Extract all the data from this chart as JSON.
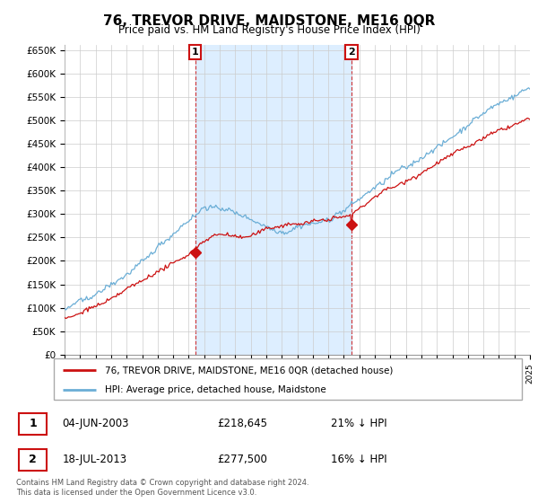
{
  "title": "76, TREVOR DRIVE, MAIDSTONE, ME16 0QR",
  "subtitle": "Price paid vs. HM Land Registry's House Price Index (HPI)",
  "ylim": [
    0,
    660000
  ],
  "yticks": [
    0,
    50000,
    100000,
    150000,
    200000,
    250000,
    300000,
    350000,
    400000,
    450000,
    500000,
    550000,
    600000,
    650000
  ],
  "ytick_labels": [
    "£0",
    "£50K",
    "£100K",
    "£150K",
    "£200K",
    "£250K",
    "£300K",
    "£350K",
    "£400K",
    "£450K",
    "£500K",
    "£550K",
    "£600K",
    "£650K"
  ],
  "hpi_color": "#6baed6",
  "hpi_fill_color": "#ddeeff",
  "price_color": "#cc1111",
  "dashed_color": "#cc1111",
  "marker1_year": 2003.42,
  "marker1_price": 218645,
  "marker1_label": "1",
  "marker2_year": 2013.54,
  "marker2_price": 277500,
  "marker2_label": "2",
  "legend_line1": "76, TREVOR DRIVE, MAIDSTONE, ME16 0QR (detached house)",
  "legend_line2": "HPI: Average price, detached house, Maidstone",
  "table_row1": [
    "1",
    "04-JUN-2003",
    "£218,645",
    "21% ↓ HPI"
  ],
  "table_row2": [
    "2",
    "18-JUL-2013",
    "£277,500",
    "16% ↓ HPI"
  ],
  "footer": "Contains HM Land Registry data © Crown copyright and database right 2024.\nThis data is licensed under the Open Government Licence v3.0.",
  "background_color": "#ffffff",
  "grid_color": "#cccccc"
}
